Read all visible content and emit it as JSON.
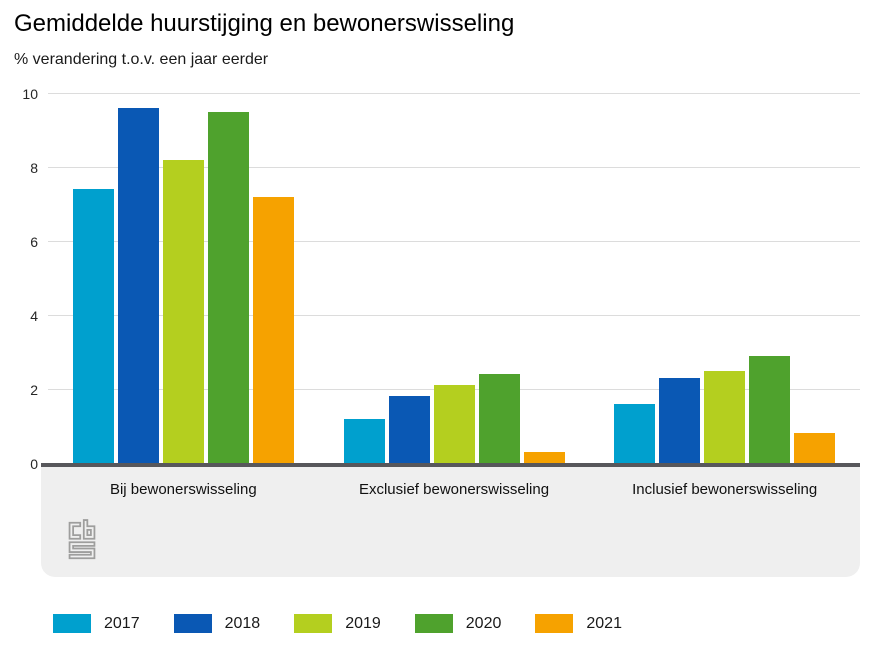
{
  "title": "Gemiddelde huurstijging en bewonerswisseling",
  "subtitle": "% verandering t.o.v. een jaar eerder",
  "chart_data": {
    "type": "bar",
    "categories": [
      "Bij bewonerswisseling",
      "Exclusief bewonerswisseling",
      "Inclusief bewonerswisseling"
    ],
    "series": [
      {
        "name": "2017",
        "color": "#00a0ce",
        "values": [
          7.4,
          1.2,
          1.6
        ]
      },
      {
        "name": "2018",
        "color": "#0a58b4",
        "values": [
          9.6,
          1.8,
          2.3
        ]
      },
      {
        "name": "2019",
        "color": "#b4cf1f",
        "values": [
          8.2,
          2.1,
          2.5
        ]
      },
      {
        "name": "2020",
        "color": "#4fa22d",
        "values": [
          9.5,
          2.4,
          2.9
        ]
      },
      {
        "name": "2021",
        "color": "#f6a200",
        "values": [
          7.2,
          0.3,
          0.8
        ]
      }
    ],
    "ylabel": "",
    "xlabel": "",
    "ylim": [
      0,
      10
    ],
    "yticks": [
      0,
      2,
      4,
      6,
      8,
      10
    ],
    "grid": true,
    "legend_position": "bottom",
    "branding": "cbs"
  }
}
